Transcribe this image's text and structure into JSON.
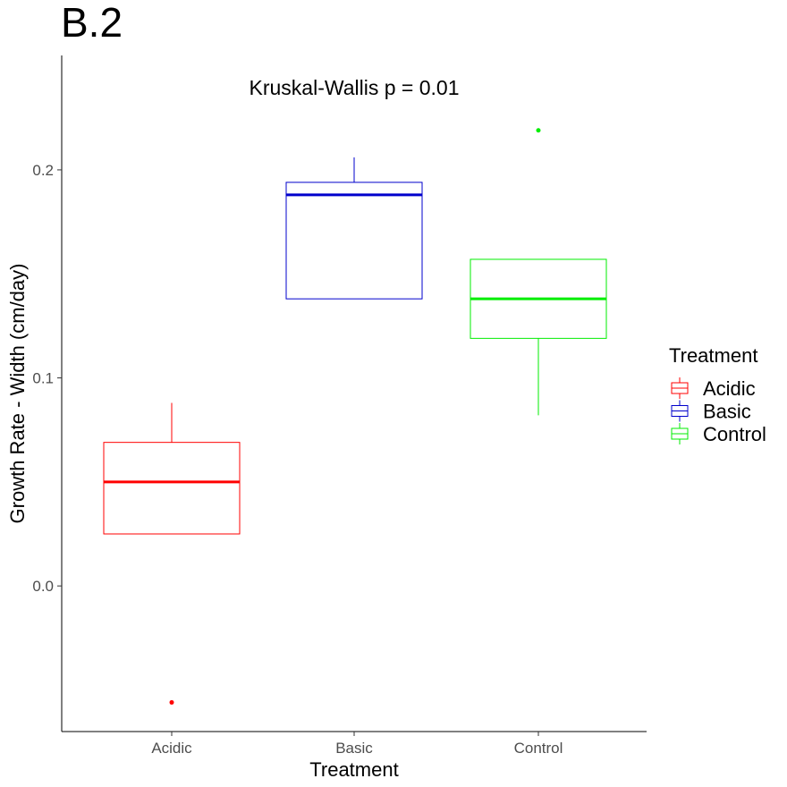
{
  "panel_label": "B.2",
  "chart_data": {
    "type": "box",
    "xlabel": "Treatment",
    "ylabel": "Growth Rate - Width (cm/day)",
    "ylim": [
      -0.07,
      0.255
    ],
    "y_ticks": [
      0.0,
      0.1,
      0.2
    ],
    "y_tick_labels": [
      "0.0",
      "0.1",
      "0.2"
    ],
    "grid": false,
    "annotation": "Kruskal-Wallis p = 0.01",
    "categories": [
      "Acidic",
      "Basic",
      "Control"
    ],
    "boxes": [
      {
        "name": "Acidic",
        "color": "#ff0000",
        "whisker_low": 0.025,
        "q1": 0.025,
        "median": 0.05,
        "q3": 0.069,
        "whisker_high": 0.088,
        "outliers": [
          -0.056
        ]
      },
      {
        "name": "Basic",
        "color": "#0000cc",
        "whisker_low": 0.138,
        "q1": 0.138,
        "median": 0.188,
        "q3": 0.194,
        "whisker_high": 0.206,
        "outliers": []
      },
      {
        "name": "Control",
        "color": "#00ee00",
        "whisker_low": 0.082,
        "q1": 0.119,
        "median": 0.138,
        "q3": 0.157,
        "whisker_high": 0.157,
        "outliers": [
          0.219
        ]
      }
    ],
    "legend": {
      "title": "Treatment",
      "position": "right",
      "entries": [
        "Acidic",
        "Basic",
        "Control"
      ]
    }
  }
}
